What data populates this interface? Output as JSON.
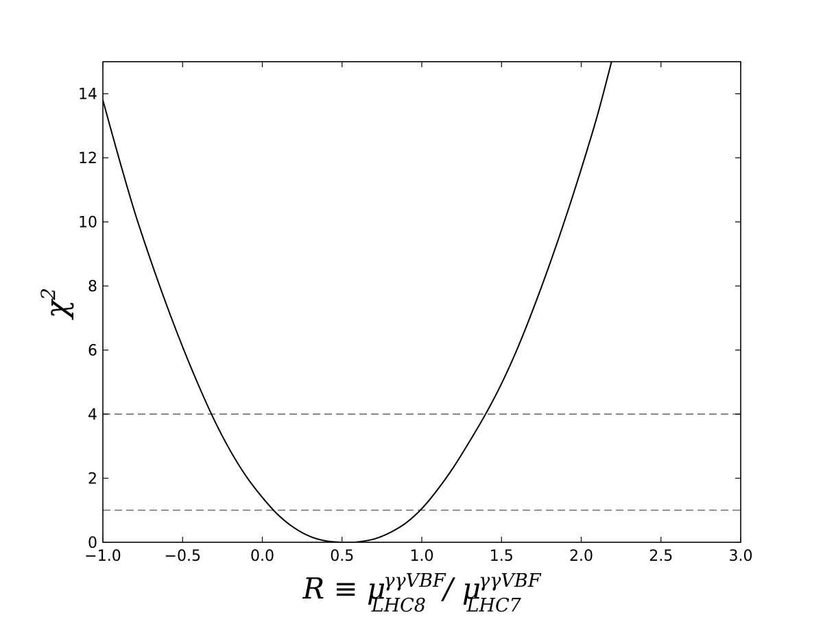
{
  "chart_data": {
    "type": "line",
    "xlabel": {
      "main": "R ≡ μ",
      "sup1": "γγVBF",
      "sub1": "LHC8",
      "sep": " / μ",
      "sup2": "γγVBF",
      "sub2": "LHC7"
    },
    "ylabel": {
      "main": "χ",
      "sup": "2"
    },
    "xlim": [
      -1.0,
      3.0
    ],
    "ylim": [
      0,
      15
    ],
    "xticks": [
      -1.0,
      -0.5,
      0.0,
      0.5,
      1.0,
      1.5,
      2.0,
      2.5,
      3.0
    ],
    "xtick_labels": [
      "−1.0",
      "−0.5",
      "0.0",
      "0.5",
      "1.0",
      "1.5",
      "2.0",
      "2.5",
      "3.0"
    ],
    "yticks": [
      0,
      2,
      4,
      6,
      8,
      10,
      12,
      14
    ],
    "ytick_labels": [
      "0",
      "2",
      "4",
      "6",
      "8",
      "10",
      "12",
      "14"
    ],
    "grid": false,
    "legend": "none",
    "series": [
      {
        "style": "solid",
        "color": "#000000",
        "x": [
          -1.0,
          -0.9,
          -0.8,
          -0.7,
          -0.6,
          -0.5,
          -0.4,
          -0.3,
          -0.2,
          -0.1,
          0.0,
          0.1,
          0.2,
          0.3,
          0.4,
          0.5,
          0.56,
          0.6,
          0.7,
          0.8,
          0.9,
          1.0,
          1.1,
          1.2,
          1.3,
          1.4,
          1.5,
          1.6,
          1.7,
          1.8,
          1.9,
          2.0,
          2.1,
          2.19
        ],
        "y": [
          13.8,
          12.0,
          10.3,
          8.8,
          7.4,
          6.1,
          4.9,
          3.8,
          2.85,
          2.05,
          1.4,
          0.85,
          0.45,
          0.18,
          0.04,
          0.0,
          0.0,
          0.01,
          0.1,
          0.3,
          0.6,
          1.05,
          1.65,
          2.35,
          3.15,
          4.0,
          4.95,
          6.05,
          7.3,
          8.65,
          10.1,
          11.65,
          13.3,
          15.0
        ]
      }
    ],
    "reference_lines": [
      {
        "y": 4,
        "style": "dashed",
        "color": "#808080"
      },
      {
        "y": 1,
        "style": "dashed",
        "color": "#808080"
      }
    ]
  }
}
